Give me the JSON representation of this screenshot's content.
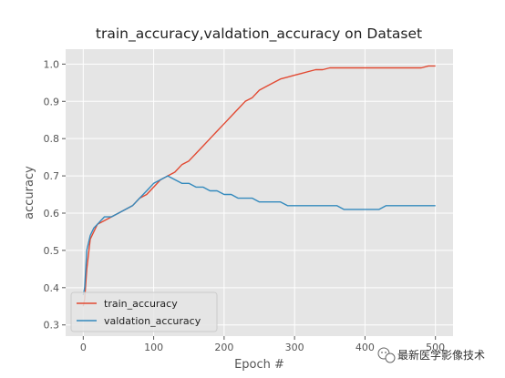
{
  "chart_data": {
    "type": "line",
    "title": "train_accuracy,valdation_accuracy on Dataset",
    "xlabel": "Epoch #",
    "ylabel": "accuracy",
    "xlim": [
      -25,
      525
    ],
    "ylim": [
      0.27,
      1.04
    ],
    "xticks": [
      0,
      100,
      200,
      300,
      400,
      500
    ],
    "yticks": [
      0.3,
      0.4,
      0.5,
      0.6,
      0.7,
      0.8,
      0.9,
      1.0
    ],
    "xtick_labels": [
      "0",
      "100",
      "200",
      "300",
      "400",
      "500"
    ],
    "ytick_labels": [
      "0.3",
      "0.4",
      "0.5",
      "0.6",
      "0.7",
      "0.8",
      "0.9",
      "1.0"
    ],
    "grid": true,
    "legend_position": "lower-left",
    "series": [
      {
        "name": "train_accuracy",
        "color": "#E24A33",
        "x": [
          0,
          2,
          5,
          10,
          15,
          20,
          30,
          40,
          50,
          60,
          70,
          80,
          90,
          100,
          110,
          120,
          130,
          140,
          150,
          160,
          170,
          180,
          190,
          200,
          210,
          220,
          230,
          240,
          250,
          260,
          270,
          280,
          290,
          300,
          310,
          320,
          330,
          340,
          350,
          360,
          370,
          380,
          390,
          400,
          410,
          420,
          430,
          440,
          450,
          460,
          470,
          480,
          490,
          500
        ],
        "y": [
          0.35,
          0.37,
          0.45,
          0.53,
          0.55,
          0.57,
          0.58,
          0.59,
          0.6,
          0.61,
          0.62,
          0.64,
          0.65,
          0.67,
          0.69,
          0.7,
          0.71,
          0.73,
          0.74,
          0.76,
          0.78,
          0.8,
          0.82,
          0.84,
          0.86,
          0.88,
          0.9,
          0.91,
          0.93,
          0.94,
          0.95,
          0.96,
          0.965,
          0.97,
          0.975,
          0.98,
          0.985,
          0.985,
          0.99,
          0.99,
          0.99,
          0.99,
          0.99,
          0.99,
          0.99,
          0.99,
          0.99,
          0.99,
          0.99,
          0.99,
          0.99,
          0.99,
          0.995,
          0.995
        ]
      },
      {
        "name": "valdation_accuracy",
        "color": "#348ABD",
        "x": [
          0,
          2,
          5,
          10,
          15,
          20,
          30,
          40,
          50,
          60,
          70,
          80,
          90,
          100,
          110,
          120,
          130,
          140,
          150,
          160,
          170,
          180,
          190,
          200,
          210,
          220,
          230,
          240,
          250,
          260,
          270,
          280,
          290,
          300,
          310,
          320,
          330,
          340,
          350,
          360,
          370,
          380,
          390,
          400,
          410,
          420,
          430,
          440,
          450,
          460,
          470,
          480,
          490,
          500
        ],
        "y": [
          0.38,
          0.4,
          0.5,
          0.54,
          0.56,
          0.57,
          0.59,
          0.59,
          0.6,
          0.61,
          0.62,
          0.64,
          0.66,
          0.68,
          0.69,
          0.7,
          0.69,
          0.68,
          0.68,
          0.67,
          0.67,
          0.66,
          0.66,
          0.65,
          0.65,
          0.64,
          0.64,
          0.64,
          0.63,
          0.63,
          0.63,
          0.63,
          0.62,
          0.62,
          0.62,
          0.62,
          0.62,
          0.62,
          0.62,
          0.62,
          0.61,
          0.61,
          0.61,
          0.61,
          0.61,
          0.61,
          0.62,
          0.62,
          0.62,
          0.62,
          0.62,
          0.62,
          0.62,
          0.62
        ]
      }
    ]
  },
  "watermark": {
    "text": "最新医学影像技术",
    "icon": "wechat-icon"
  }
}
